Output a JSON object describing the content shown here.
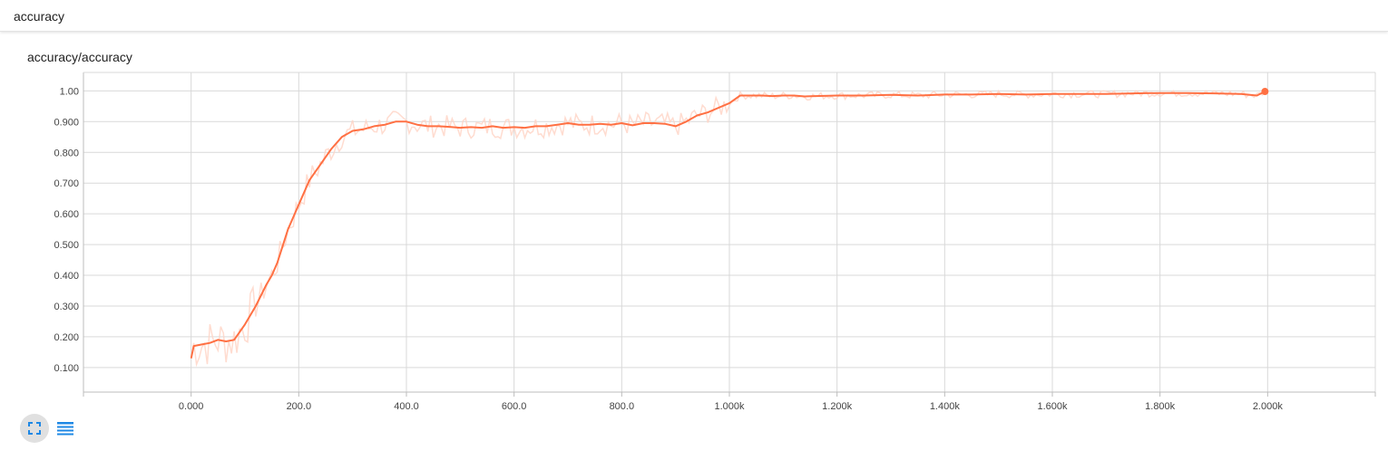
{
  "section": {
    "title": "accuracy"
  },
  "card": {
    "title": "accuracy/accuracy"
  },
  "colors": {
    "series": "#ff7043",
    "raw": "#ffd3c4",
    "grid": "#d9d9d9",
    "axis": "#bdbdbd",
    "icon": "#1e88e5"
  },
  "icons": {
    "expand": "expand-icon",
    "data": "list-icon"
  },
  "chart_data": {
    "type": "line",
    "title": "accuracy/accuracy",
    "xlim": [
      -200,
      2200
    ],
    "ylim": [
      0.02,
      1.06
    ],
    "x_ticks": [
      0,
      200,
      400,
      600,
      800,
      1000,
      1200,
      1400,
      1600,
      1800,
      2000
    ],
    "x_tick_labels": [
      "0.000",
      "200.0",
      "400.0",
      "600.0",
      "800.0",
      "1.000k",
      "1.200k",
      "1.400k",
      "1.600k",
      "1.800k",
      "2.000k"
    ],
    "y_ticks": [
      0.1,
      0.2,
      0.3,
      0.4,
      0.5,
      0.6,
      0.7,
      0.8,
      0.9,
      1.0
    ],
    "y_tick_labels": [
      "0.100",
      "0.200",
      "0.300",
      "0.400",
      "0.500",
      "0.600",
      "0.700",
      "0.800",
      "0.900",
      "1.00"
    ],
    "grid": true,
    "series": [
      {
        "smoothed": true,
        "x": [
          0,
          5,
          20,
          35,
          50,
          65,
          80,
          100,
          120,
          140,
          150,
          160,
          180,
          200,
          220,
          240,
          260,
          280,
          300,
          320,
          340,
          360,
          380,
          400,
          420,
          440,
          460,
          480,
          500,
          520,
          540,
          560,
          580,
          600,
          620,
          640,
          660,
          680,
          700,
          720,
          740,
          760,
          780,
          800,
          820,
          840,
          860,
          880,
          900,
          920,
          940,
          960,
          980,
          1000,
          1020,
          1040,
          1060,
          1080,
          1100,
          1120,
          1140,
          1160,
          1200,
          1250,
          1300,
          1350,
          1400,
          1450,
          1500,
          1550,
          1600,
          1650,
          1700,
          1750,
          1800,
          1850,
          1900,
          1950,
          1980,
          1995
        ],
        "y": [
          0.13,
          0.17,
          0.175,
          0.18,
          0.19,
          0.185,
          0.19,
          0.24,
          0.3,
          0.37,
          0.4,
          0.44,
          0.55,
          0.63,
          0.71,
          0.76,
          0.81,
          0.85,
          0.87,
          0.875,
          0.885,
          0.89,
          0.9,
          0.9,
          0.89,
          0.885,
          0.885,
          0.883,
          0.88,
          0.882,
          0.88,
          0.885,
          0.88,
          0.882,
          0.88,
          0.885,
          0.885,
          0.89,
          0.895,
          0.89,
          0.89,
          0.893,
          0.89,
          0.895,
          0.888,
          0.895,
          0.895,
          0.893,
          0.885,
          0.9,
          0.92,
          0.93,
          0.945,
          0.96,
          0.985,
          0.985,
          0.985,
          0.983,
          0.985,
          0.985,
          0.982,
          0.983,
          0.985,
          0.985,
          0.987,
          0.985,
          0.988,
          0.988,
          0.99,
          0.988,
          0.99,
          0.99,
          0.99,
          0.992,
          0.993,
          0.993,
          0.992,
          0.99,
          0.985,
          0.998
        ]
      }
    ],
    "last_point": {
      "x": 1995,
      "y": 0.998
    }
  }
}
